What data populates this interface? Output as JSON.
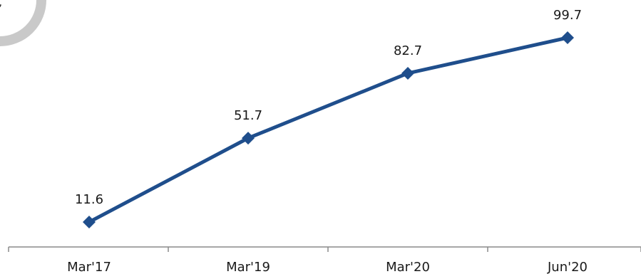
{
  "chart_data": {
    "type": "line",
    "categories": [
      "Mar'17",
      "Mar'19",
      "Mar'20",
      "Jun'20"
    ],
    "series": [
      {
        "values": [
          11.6,
          51.7,
          82.7,
          99.7
        ]
      }
    ],
    "data_labels": [
      "11.6",
      "51.7",
      "82.7",
      "99.7"
    ],
    "line_color": "#1f4e8c",
    "marker": "diamond",
    "grid": false,
    "legend": "none"
  },
  "decoration": {
    "badge_ring_color": "#c9c9c9",
    "badge_glyph": "ʼ"
  }
}
